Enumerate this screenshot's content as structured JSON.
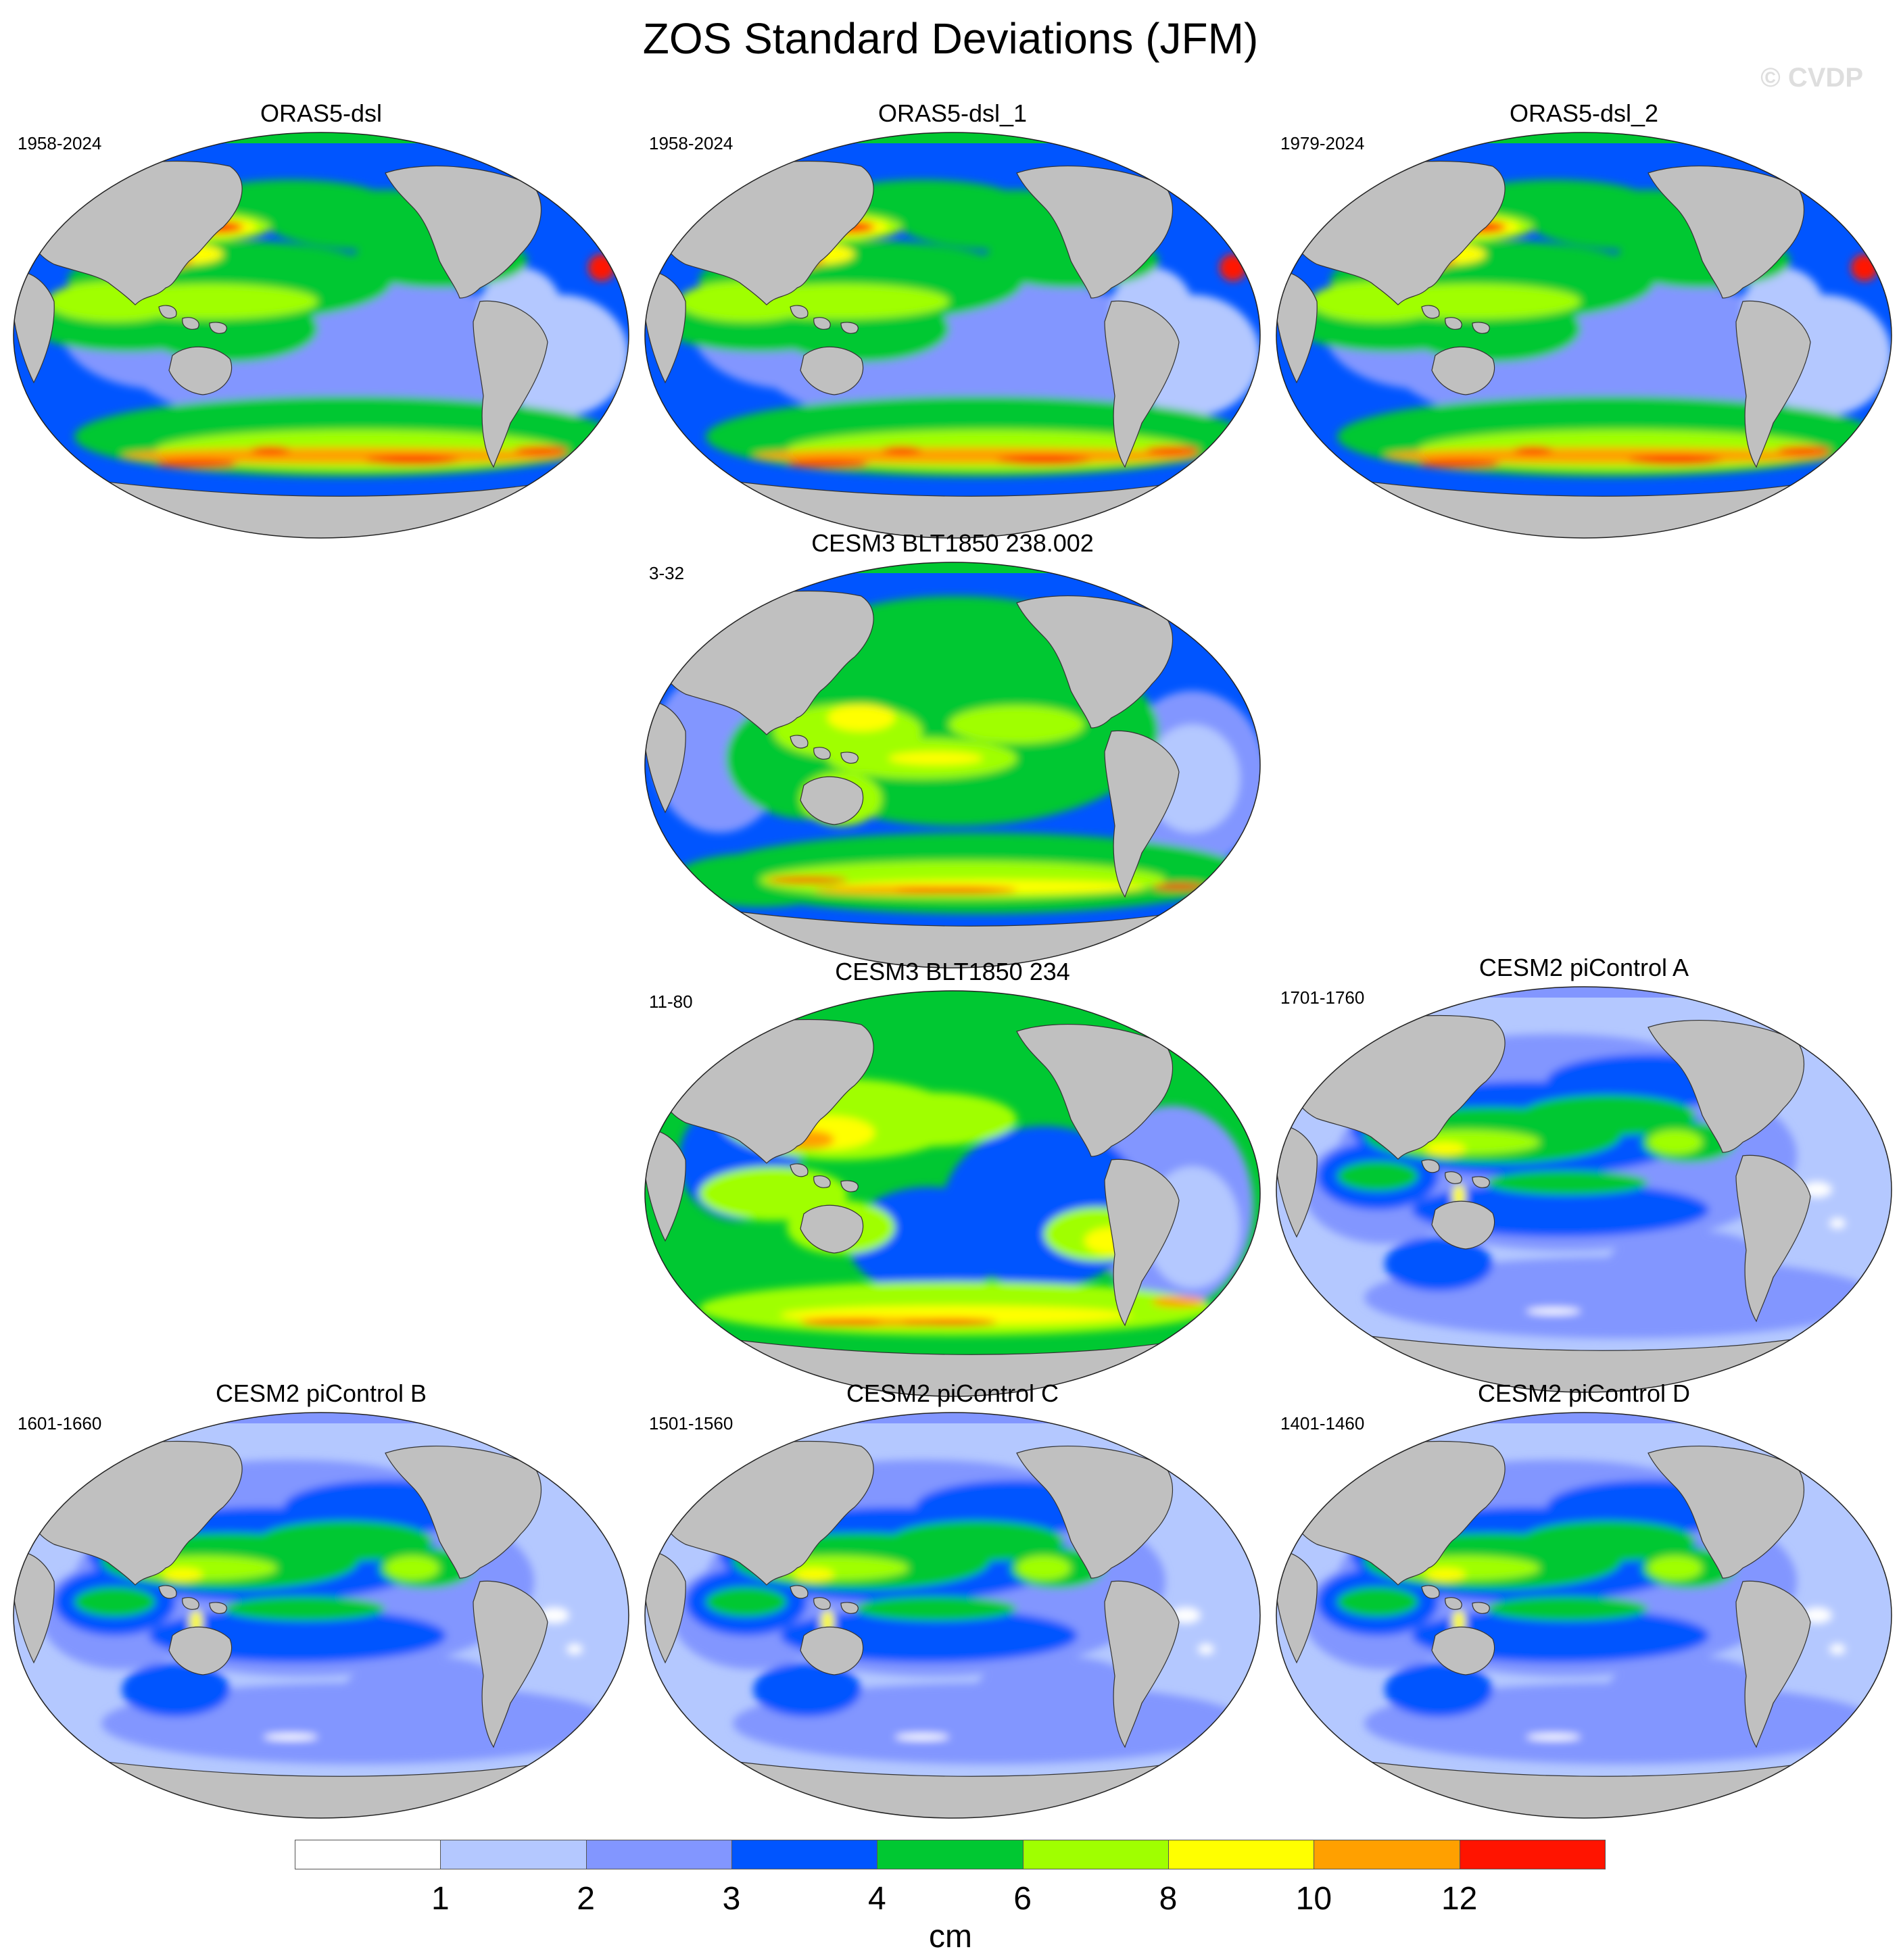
{
  "title": "ZOS Standard Deviations (JFM)",
  "watermark": "© CVDP",
  "panels": [
    {
      "title": "ORAS5-dsl",
      "period": "1958-2024",
      "style": "oras"
    },
    {
      "title": "ORAS5-dsl_1",
      "period": "1958-2024",
      "style": "oras"
    },
    {
      "title": "ORAS5-dsl_2",
      "period": "1979-2024",
      "style": "oras"
    },
    {
      "title": "CESM3 BLT1850 238.002",
      "period": "3-32",
      "style": "cesm3a"
    },
    {
      "title": "CESM3 BLT1850 234",
      "period": "11-80",
      "style": "cesm3b"
    },
    {
      "title": "CESM2 piControl A",
      "period": "1701-1760",
      "style": "cesm2"
    },
    {
      "title": "CESM2 piControl B",
      "period": "1601-1660",
      "style": "cesm2"
    },
    {
      "title": "CESM2 piControl C",
      "period": "1501-1560",
      "style": "cesm2"
    },
    {
      "title": "CESM2 piControl D",
      "period": "1401-1460",
      "style": "cesm2"
    }
  ],
  "colorbar": {
    "units": "cm",
    "ticks": [
      "1",
      "2",
      "3",
      "4",
      "6",
      "8",
      "10",
      "12"
    ],
    "colors": [
      "#ffffff",
      "#b4c8ff",
      "#8296ff",
      "#0055ff",
      "#00c832",
      "#a0ff00",
      "#ffff00",
      "#ffa000",
      "#ff1400"
    ]
  },
  "map_colors": {
    "land": "#c0c0c0",
    "ocean_missing": "#ffffff"
  }
}
